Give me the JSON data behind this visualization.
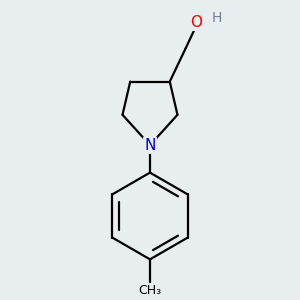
{
  "bg_color": "#e8edf0",
  "atom_colors": {
    "O": "#ff0000",
    "N": "#0000cc",
    "C": "#000000",
    "H": "#708090"
  },
  "bond_color": "#000000",
  "bond_width": 1.6,
  "font_size_atom": 11,
  "font_size_H": 10,
  "figsize": [
    3.0,
    3.0
  ],
  "dpi": 100,
  "xlim": [
    -1.4,
    1.4
  ],
  "ylim": [
    -2.6,
    1.4
  ]
}
